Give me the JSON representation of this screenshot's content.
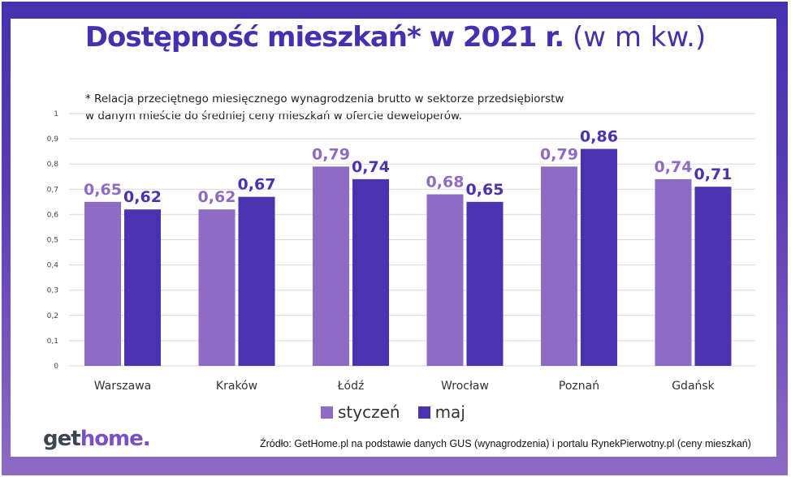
{
  "title": {
    "bold": "Dostępność mieszkań* w 2021 r.",
    "light": "(w m kw.)"
  },
  "note": [
    "* Relacja przeciętnego miesięcznego wynagrodzenia brutto w sektorze przedsiębiorstw",
    "w danym mieście do średniej ceny mieszkań w ofercie deweloperów."
  ],
  "logo": {
    "part1": "get",
    "part2": "home."
  },
  "source": "Źródło: GetHome.pl na podstawie danych GUS (wynagrodzenia) i portalu RynekPierwotny.pl (ceny mieszkań)",
  "colors": {
    "styczen": "#8e6bc4",
    "maj": "#4a32b0",
    "frame": "#4631b0"
  },
  "chart_data": {
    "type": "bar",
    "categories": [
      "Warszawa",
      "Kraków",
      "Łódź",
      "Wrocław",
      "Poznań",
      "Gdańsk"
    ],
    "series": [
      {
        "name": "styczeń",
        "values": [
          0.65,
          0.62,
          0.79,
          0.68,
          0.79,
          0.74
        ],
        "labels": [
          "0,65",
          "0,62",
          "0,79",
          "0,68",
          "0,79",
          "0,74"
        ]
      },
      {
        "name": "maj",
        "values": [
          0.62,
          0.67,
          0.74,
          0.65,
          0.86,
          0.71
        ],
        "labels": [
          "0,62",
          "0,67",
          "0,74",
          "0,65",
          "0,86",
          "0,71"
        ]
      }
    ],
    "ylim": [
      0,
      1
    ],
    "yticks": [
      "0",
      "0,1",
      "0,2",
      "0,3",
      "0,4",
      "0,5",
      "0,6",
      "0,7",
      "0,8",
      "0,9",
      "1"
    ],
    "grid": true,
    "legend": "bottom"
  }
}
